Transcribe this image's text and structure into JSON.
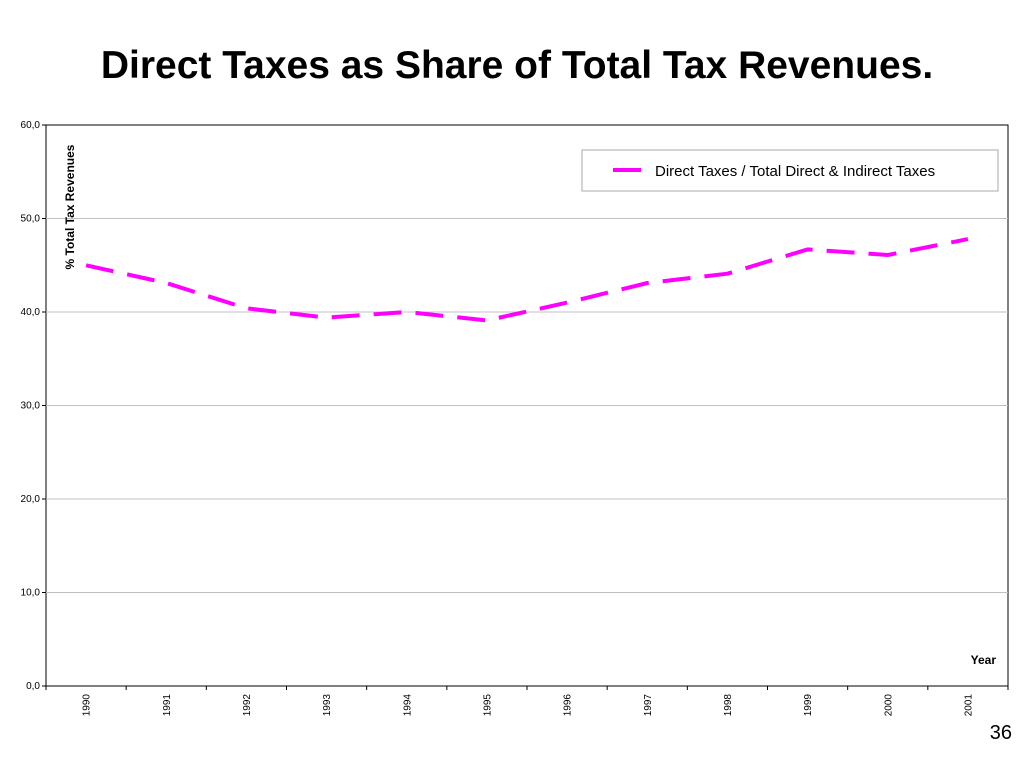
{
  "slide": {
    "title": "Direct Taxes as Share of Total Tax Revenues.",
    "page_number": "36"
  },
  "chart_data": {
    "type": "line",
    "title": "",
    "xlabel": "Year",
    "ylabel": "% Total Tax Revenues",
    "categories": [
      "1990",
      "1991",
      "1992",
      "1993",
      "1994",
      "1995",
      "1996",
      "1997",
      "1998",
      "1999",
      "2000",
      "2001"
    ],
    "series": [
      {
        "name": "Direct Taxes / Total Direct & Indirect Taxes",
        "values": [
          45.0,
          43.1,
          40.4,
          39.4,
          40.0,
          39.1,
          41.0,
          43.1,
          44.1,
          46.7,
          46.1,
          47.8
        ],
        "color": "#ff00ff",
        "style": "dashed"
      }
    ],
    "ylim": [
      0,
      60
    ],
    "yticks": [
      "0,0",
      "10,0",
      "20,0",
      "30,0",
      "40,0",
      "50,0",
      "60,0"
    ],
    "grid": true,
    "legend_position": "top-right"
  }
}
